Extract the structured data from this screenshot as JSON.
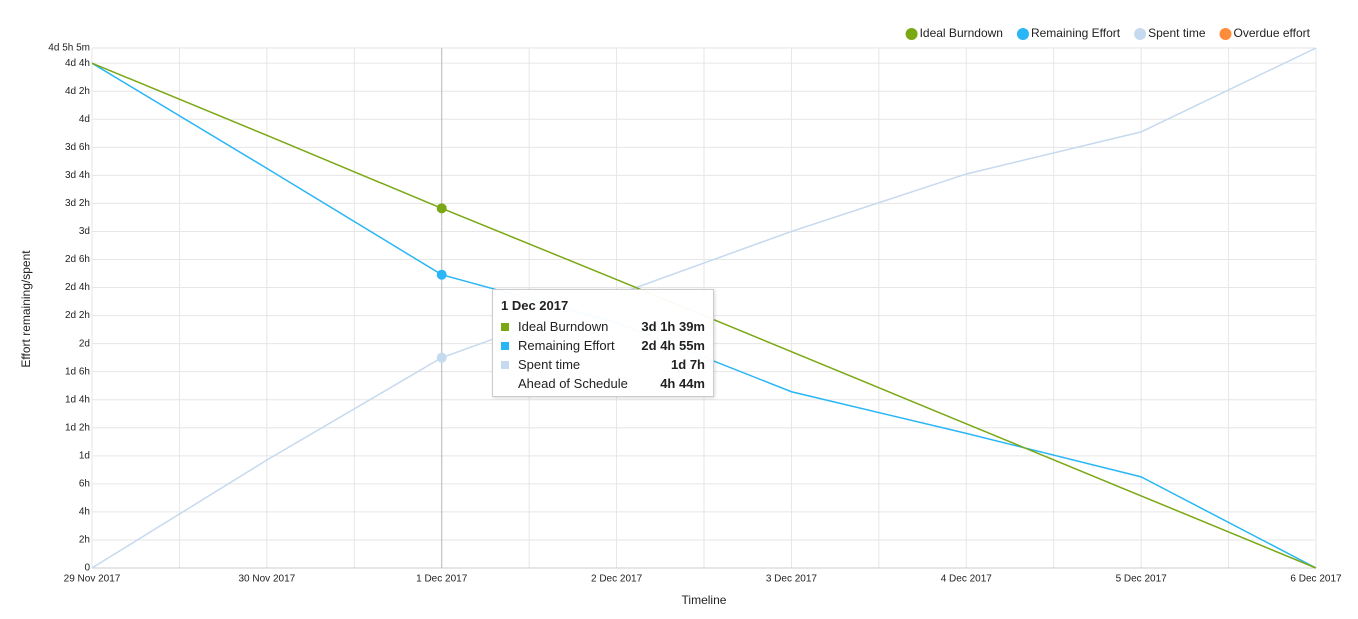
{
  "chart_data": {
    "type": "line",
    "x_label": "Timeline",
    "y_label": "Effort remaining/spent",
    "categories": [
      "29 Nov 2017",
      "30 Nov 2017",
      "1 Dec 2017",
      "2 Dec 2017",
      "3 Dec 2017",
      "4 Dec 2017",
      "5 Dec 2017",
      "6 Dec 2017"
    ],
    "series": [
      {
        "name": "Ideal Burndown",
        "color": "#7aa814",
        "values": [
          36,
          30.857,
          25.65,
          20.571,
          15.429,
          10.286,
          5.143,
          0
        ]
      },
      {
        "name": "Remaining Effort",
        "color": "#29b6f6",
        "values": [
          36,
          28.5,
          20.917,
          17.5,
          12.57,
          9.6,
          6.5,
          0
        ]
      },
      {
        "name": "Spent time",
        "color": "#c5d9ef",
        "values": [
          0,
          7.7,
          15,
          19.5,
          24,
          28.1,
          31.1,
          37.083
        ]
      },
      {
        "name": "Overdue effort",
        "color": "#ff8c3a",
        "values": [
          null,
          null,
          null,
          null,
          null,
          null,
          null,
          null
        ]
      }
    ],
    "ylim": [
      0,
      37.083
    ],
    "yticks": [
      0,
      {
        "value": 2,
        "label": "2h"
      },
      {
        "value": 4,
        "label": "4h"
      },
      {
        "value": 6,
        "label": "6h"
      },
      {
        "value": 8,
        "label": "1d"
      },
      {
        "value": 10,
        "label": "1d 2h"
      },
      {
        "value": 12,
        "label": "1d 4h"
      },
      {
        "value": 14,
        "label": "1d 6h"
      },
      {
        "value": 16,
        "label": "2d"
      },
      {
        "value": 18,
        "label": "2d 2h"
      },
      {
        "value": 20,
        "label": "2d 4h"
      },
      {
        "value": 22,
        "label": "2d 6h"
      },
      {
        "value": 24,
        "label": "3d"
      },
      {
        "value": 26,
        "label": "3d 2h"
      },
      {
        "value": 28,
        "label": "3d 4h"
      },
      {
        "value": 30,
        "label": "3d 6h"
      },
      {
        "value": 32,
        "label": "4d"
      },
      {
        "value": 34,
        "label": "4d 2h"
      },
      {
        "value": 36,
        "label": "4d 4h"
      },
      {
        "value": 37.083,
        "label": "4d 5h 5m"
      }
    ],
    "grid": true,
    "legend": "top-right",
    "highlight_index": 2,
    "tooltip": {
      "title": "1 Dec 2017",
      "rows": [
        {
          "label": "Ideal Burndown",
          "value": "3d 1h 39m",
          "color": "#7aa814"
        },
        {
          "label": "Remaining Effort",
          "value": "2d 4h 55m",
          "color": "#29b6f6"
        },
        {
          "label": "Spent time",
          "value": "1d 7h",
          "color": "#c5d9ef"
        },
        {
          "label": "Ahead of Schedule",
          "value": "4h 44m",
          "color": null
        }
      ]
    }
  }
}
